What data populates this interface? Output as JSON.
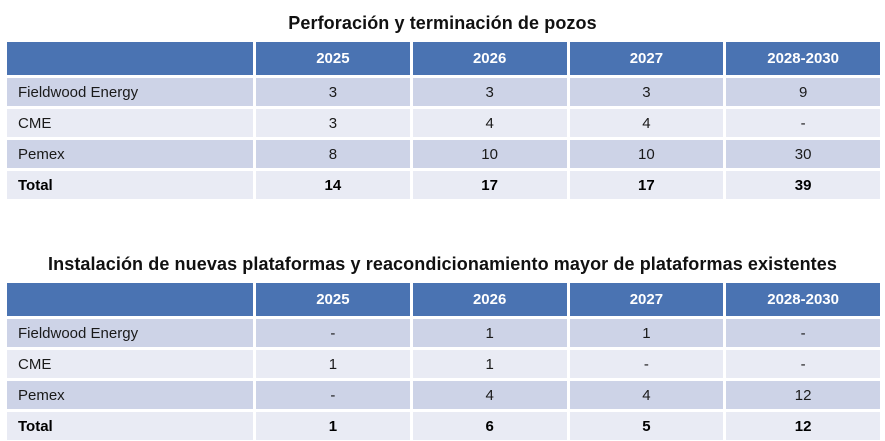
{
  "colors": {
    "header_bg": "#4a73b2",
    "header_text": "#ffffff",
    "band_dark": "#cdd3e7",
    "band_light": "#e9ebf4",
    "body_text": "#1a1a1a"
  },
  "tables": [
    {
      "title": "Perforación y terminación de pozos",
      "columns": [
        "",
        "2025",
        "2026",
        "2027",
        "2028-2030"
      ],
      "rows": [
        {
          "label": "Fieldwood Energy",
          "values": [
            "3",
            "3",
            "3",
            "9"
          ]
        },
        {
          "label": "CME",
          "values": [
            "3",
            "4",
            "4",
            "-"
          ]
        },
        {
          "label": "Pemex",
          "values": [
            "8",
            "10",
            "10",
            "30"
          ]
        },
        {
          "label": "Total",
          "values": [
            "14",
            "17",
            "17",
            "39"
          ]
        }
      ]
    },
    {
      "title": "Instalación de nuevas plataformas y reacondicionamiento mayor de plataformas existentes",
      "columns": [
        "",
        "2025",
        "2026",
        "2027",
        "2028-2030"
      ],
      "rows": [
        {
          "label": "Fieldwood Energy",
          "values": [
            "-",
            "1",
            "1",
            "-"
          ]
        },
        {
          "label": "CME",
          "values": [
            "1",
            "1",
            "-",
            "-"
          ]
        },
        {
          "label": "Pemex",
          "values": [
            "-",
            "4",
            "4",
            "12"
          ]
        },
        {
          "label": "Total",
          "values": [
            "1",
            "6",
            "5",
            "12"
          ]
        }
      ]
    }
  ]
}
